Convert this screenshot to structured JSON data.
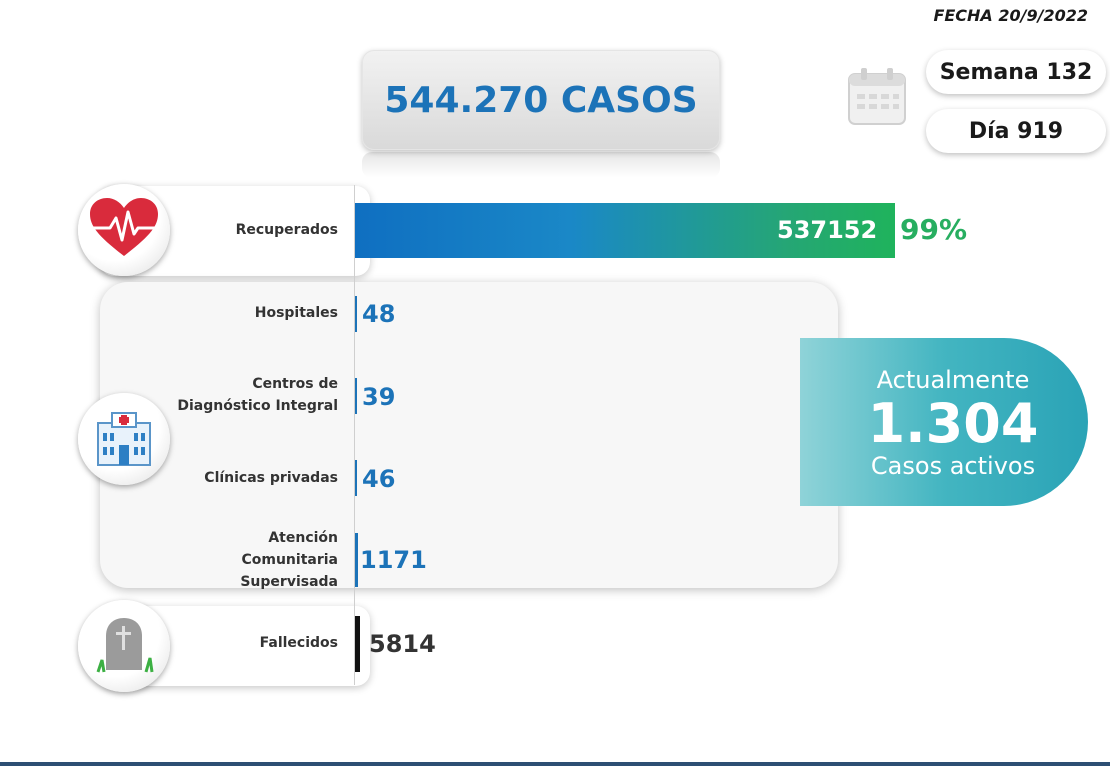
{
  "header": {
    "date": "FECHA 20/9/2022",
    "total": "544.270 CASOS",
    "week": "Semana 132",
    "day": "Día 919"
  },
  "active": {
    "label_top": "Actualmente",
    "value": "1.304",
    "label_bottom": "Casos activos"
  },
  "colors": {
    "accent_blue": "#1c73b8",
    "recovered_green": "#27ae60",
    "active_teal": "#43b5c1"
  },
  "chart_data": {
    "type": "bar",
    "orientation": "horizontal",
    "categories": [
      "Recuperados",
      "Hospitales",
      "Centros de Diagnóstico Integral",
      "Clínicas privadas",
      "Atención Comunitaria Supervisada",
      "Fallecidos"
    ],
    "values": [
      537152,
      48,
      39,
      46,
      1171,
      5814
    ],
    "value_labels": [
      "537152",
      "48",
      "39",
      "46",
      "1171",
      "5814"
    ],
    "recovered_percent_label": "99%",
    "recovered_fraction": 0.99
  }
}
